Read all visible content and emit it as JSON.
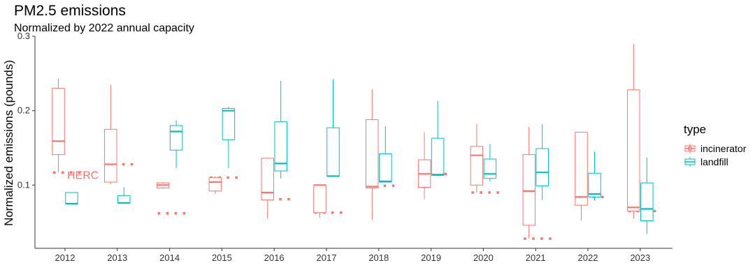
{
  "chart_data": {
    "type": "box",
    "title": "PM2.5 emissions",
    "subtitle": "Normalized by 2022 annual capacity",
    "xlabel": "",
    "ylabel": "Normalized emissions (pounds)",
    "ylim": [
      0.015,
      0.3
    ],
    "yticks": [
      0.1,
      0.2,
      0.3
    ],
    "ytick_labels": [
      "0.1",
      "0.2",
      "0.3"
    ],
    "categories": [
      "2012",
      "2013",
      "2014",
      "2015",
      "2016",
      "2017",
      "2018",
      "2019",
      "2020",
      "2021",
      "2022",
      "2023"
    ],
    "legend": {
      "title": "type",
      "placement": "right",
      "entries": [
        "incinerator",
        "landfill"
      ]
    },
    "colors": {
      "incinerator": "#F8766D",
      "landfill": "#00BFC4"
    },
    "annotation": {
      "text": "HERC",
      "category": "2012",
      "value": 0.11,
      "color": "#F8766D"
    },
    "series": [
      {
        "name": "incinerator",
        "boxes": [
          {
            "category": "2012",
            "min": 0.117,
            "q1": 0.141,
            "median": 0.159,
            "q3": 0.23,
            "max": 0.243
          },
          {
            "category": "2013",
            "min": 0.101,
            "q1": 0.104,
            "median": 0.128,
            "q3": 0.175,
            "max": 0.235
          },
          {
            "category": "2014",
            "min": 0.095,
            "q1": 0.096,
            "median": 0.1,
            "q3": 0.103,
            "max": 0.104
          },
          {
            "category": "2015",
            "min": 0.088,
            "q1": 0.092,
            "median": 0.104,
            "q3": 0.11,
            "max": 0.112
          },
          {
            "category": "2016",
            "min": 0.055,
            "q1": 0.08,
            "median": 0.09,
            "q3": 0.136,
            "max": 0.137
          },
          {
            "category": "2017",
            "min": 0.056,
            "q1": 0.063,
            "median": 0.1,
            "q3": 0.1,
            "max": 0.1
          },
          {
            "category": "2018",
            "min": 0.053,
            "q1": 0.096,
            "median": 0.098,
            "q3": 0.188,
            "max": 0.229
          },
          {
            "category": "2019",
            "min": 0.081,
            "q1": 0.097,
            "median": 0.115,
            "q3": 0.134,
            "max": 0.171
          },
          {
            "category": "2020",
            "min": 0.09,
            "q1": 0.1,
            "median": 0.14,
            "q3": 0.152,
            "max": 0.182
          },
          {
            "category": "2021",
            "min": 0.028,
            "q1": 0.046,
            "median": 0.092,
            "q3": 0.141,
            "max": 0.178
          },
          {
            "category": "2022",
            "min": 0.052,
            "q1": 0.073,
            "median": 0.084,
            "q3": 0.171,
            "max": 0.171
          },
          {
            "category": "2023",
            "min": 0.055,
            "q1": 0.065,
            "median": 0.07,
            "q3": 0.228,
            "max": 0.29
          }
        ]
      },
      {
        "name": "landfill",
        "boxes": [
          {
            "category": "2012",
            "min": 0.075,
            "q1": 0.075,
            "median": 0.075,
            "q3": 0.09,
            "max": 0.09
          },
          {
            "category": "2013",
            "min": 0.075,
            "q1": 0.076,
            "median": 0.076,
            "q3": 0.086,
            "max": 0.097
          },
          {
            "category": "2014",
            "min": 0.123,
            "q1": 0.147,
            "median": 0.172,
            "q3": 0.18,
            "max": 0.187
          },
          {
            "category": "2015",
            "min": 0.123,
            "q1": 0.161,
            "median": 0.2,
            "q3": 0.203,
            "max": 0.205
          },
          {
            "category": "2016",
            "min": 0.109,
            "q1": 0.119,
            "median": 0.129,
            "q3": 0.185,
            "max": 0.24
          },
          {
            "category": "2017",
            "min": 0.112,
            "q1": 0.112,
            "median": 0.112,
            "q3": 0.177,
            "max": 0.242
          },
          {
            "category": "2018",
            "min": 0.104,
            "q1": 0.104,
            "median": 0.105,
            "q3": 0.142,
            "max": 0.179
          },
          {
            "category": "2019",
            "min": 0.112,
            "q1": 0.113,
            "median": 0.114,
            "q3": 0.163,
            "max": 0.213
          },
          {
            "category": "2020",
            "min": 0.105,
            "q1": 0.109,
            "median": 0.115,
            "q3": 0.135,
            "max": 0.155
          },
          {
            "category": "2021",
            "min": 0.08,
            "q1": 0.099,
            "median": 0.117,
            "q3": 0.149,
            "max": 0.182
          },
          {
            "category": "2022",
            "min": 0.079,
            "q1": 0.084,
            "median": 0.088,
            "q3": 0.116,
            "max": 0.145
          },
          {
            "category": "2023",
            "min": 0.034,
            "q1": 0.052,
            "median": 0.068,
            "q3": 0.103,
            "max": 0.137
          }
        ]
      }
    ],
    "reference_points": [
      {
        "category": "2012",
        "value": 0.117
      },
      {
        "category": "2013",
        "value": 0.128
      },
      {
        "category": "2014",
        "value": 0.062
      },
      {
        "category": "2015",
        "value": 0.11
      },
      {
        "category": "2016",
        "value": 0.081
      },
      {
        "category": "2017",
        "value": 0.063
      },
      {
        "category": "2018",
        "value": 0.099
      },
      {
        "category": "2019",
        "value": 0.115
      },
      {
        "category": "2020",
        "value": 0.09
      },
      {
        "category": "2021",
        "value": 0.028
      },
      {
        "category": "2022",
        "value": 0.084
      },
      {
        "category": "2023",
        "value": 0.065
      }
    ]
  }
}
